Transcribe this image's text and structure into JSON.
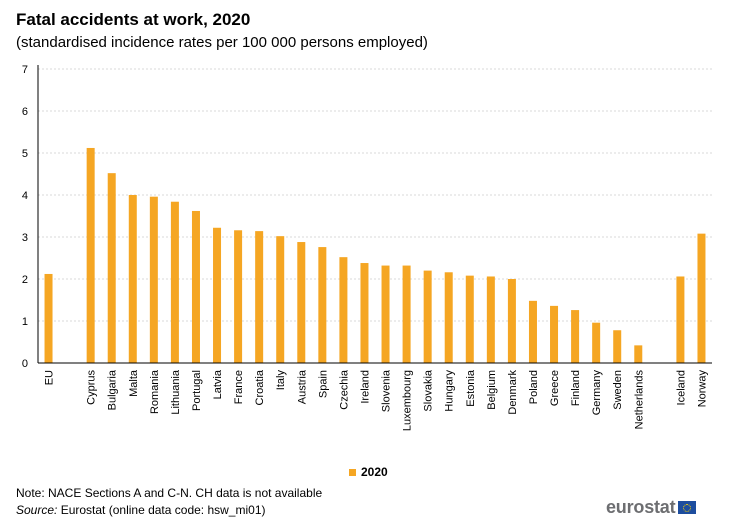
{
  "title": "Fatal accidents at work, 2020",
  "subtitle": "(standardised incidence rates per 100 000 persons employed)",
  "legend_label": "2020",
  "note": "Note: NACE Sections A and C-N. CH data is not available",
  "source_label": "Source:",
  "source_text": "Eurostat (online data code: hsw_mi01)",
  "logo_text": "eurostat",
  "colors": {
    "bar": "#f5a623",
    "grid": "#d9d9d9",
    "axis": "#000000"
  },
  "chart_data": {
    "type": "bar",
    "title": "Fatal accidents at work, 2020",
    "subtitle": "(standardised incidence rates per 100 000 persons employed)",
    "xlabel": "",
    "ylabel": "",
    "ylim": [
      0,
      7
    ],
    "yticks": [
      0,
      1,
      2,
      3,
      4,
      5,
      6,
      7
    ],
    "grid": true,
    "legend_position": "bottom",
    "categories": [
      "EU",
      "Cyprus",
      "Bulgaria",
      "Malta",
      "Romania",
      "Lithuania",
      "Portugal",
      "Latvia",
      "France",
      "Croatia",
      "Italy",
      "Austria",
      "Spain",
      "Czechia",
      "Ireland",
      "Slovenia",
      "Luxembourg",
      "Slovakia",
      "Hungary",
      "Estonia",
      "Belgium",
      "Denmark",
      "Poland",
      "Greece",
      "Finland",
      "Germany",
      "Sweden",
      "Netherlands",
      "Iceland",
      "Norway"
    ],
    "gap_after": [
      "EU",
      "Netherlands"
    ],
    "series": [
      {
        "name": "2020",
        "values": [
          2.12,
          5.12,
          4.52,
          4.0,
          3.96,
          3.84,
          3.62,
          3.22,
          3.16,
          3.14,
          3.02,
          2.88,
          2.76,
          2.52,
          2.38,
          2.32,
          2.32,
          2.2,
          2.16,
          2.08,
          2.06,
          2.0,
          1.48,
          1.36,
          1.26,
          0.96,
          0.78,
          0.42,
          2.06,
          3.08
        ]
      }
    ]
  }
}
